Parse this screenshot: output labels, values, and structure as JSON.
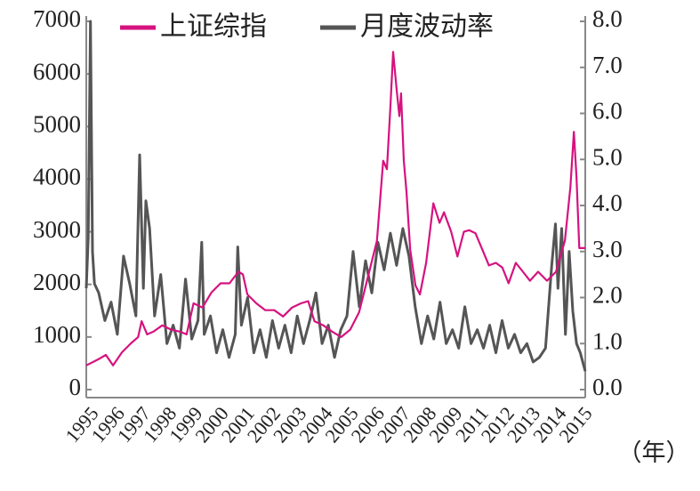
{
  "chart_data": {
    "type": "line",
    "x_label": "（年）",
    "xtick_labels": [
      "1995",
      "1996",
      "1997",
      "1998",
      "1999",
      "2000",
      "2001",
      "2002",
      "2003",
      "2004",
      "2005",
      "2006",
      "2007",
      "2008",
      "2009",
      "2011",
      "2012",
      "2013",
      "2014",
      "2015"
    ],
    "xlim": [
      1995,
      2015.1
    ],
    "ylim": [
      0,
      7000
    ],
    "yticks": [
      0,
      1000,
      2000,
      3000,
      4000,
      5000,
      6000,
      7000
    ],
    "y2lim": [
      0,
      8
    ],
    "y2ticks": [
      {
        "value": 0,
        "label": "0.0"
      },
      {
        "value": 1,
        "label": "1.0"
      },
      {
        "value": 2,
        "label": "2.0"
      },
      {
        "value": 3,
        "label": "3.0"
      },
      {
        "value": 4,
        "label": "4.0"
      },
      {
        "value": 5,
        "label": "5.0"
      },
      {
        "value": 6,
        "label": "6.0"
      },
      {
        "value": 7,
        "label": "7.0"
      },
      {
        "value": 8,
        "label": "8.0"
      }
    ],
    "series": [
      {
        "name": "上证综指",
        "color": "#d6127f",
        "x": [
          1995.0,
          1995.54,
          1995.79,
          1996.08,
          1996.44,
          1996.8,
          1997.09,
          1997.23,
          1997.45,
          1997.7,
          1998.06,
          1998.42,
          1998.78,
          1999.04,
          1999.32,
          1999.68,
          2000.05,
          2000.41,
          2000.77,
          2001.13,
          2001.31,
          2001.49,
          2001.85,
          2002.21,
          2002.57,
          2002.93,
          2003.29,
          2003.65,
          2003.94,
          2004.19,
          2004.55,
          2004.91,
          2005.27,
          2005.63,
          2005.99,
          2006.35,
          2006.71,
          2006.96,
          2007.11,
          2007.25,
          2007.36,
          2007.5,
          2007.61,
          2007.68,
          2007.79,
          2007.9,
          2008.05,
          2008.26,
          2008.44,
          2008.69,
          2008.98,
          2009.23,
          2009.41,
          2009.7,
          2009.95,
          2010.21,
          2010.42,
          2010.68,
          2010.93,
          2011.22,
          2011.5,
          2011.76,
          2012.01,
          2012.3,
          2012.59,
          2012.87,
          2013.2,
          2013.56,
          2013.92,
          2014.28,
          2014.5,
          2014.64,
          2014.75,
          2014.86,
          2015.1
        ],
        "values": [
          460,
          590,
          660,
          460,
          710,
          880,
          1000,
          1300,
          1050,
          1100,
          1220,
          1140,
          1100,
          1050,
          1640,
          1560,
          1850,
          2020,
          2020,
          2240,
          2190,
          1810,
          1640,
          1510,
          1510,
          1390,
          1560,
          1640,
          1680,
          1300,
          1220,
          1100,
          1000,
          1140,
          1470,
          2150,
          2830,
          4350,
          4190,
          5370,
          6420,
          5710,
          5200,
          5630,
          4350,
          3760,
          2660,
          1980,
          1810,
          2410,
          3540,
          3170,
          3370,
          3000,
          2530,
          3000,
          3030,
          2970,
          2690,
          2360,
          2410,
          2320,
          2020,
          2410,
          2240,
          2070,
          2240,
          2070,
          2240,
          2830,
          3850,
          4900,
          4020,
          2690,
          2690
        ]
      },
      {
        "name": "月度波动率",
        "color": "#555555",
        "axis": "y2",
        "x": [
          1995.0,
          1995.08,
          1995.17,
          1995.25,
          1995.33,
          1995.5,
          1995.75,
          1996.0,
          1996.25,
          1996.5,
          1996.75,
          1997.0,
          1997.15,
          1997.3,
          1997.4,
          1997.55,
          1997.75,
          1998.0,
          1998.25,
          1998.5,
          1998.75,
          1999.0,
          1999.25,
          1999.5,
          1999.65,
          1999.75,
          2000.0,
          2000.25,
          2000.5,
          2000.75,
          2001.0,
          2001.1,
          2001.25,
          2001.5,
          2001.75,
          2002.0,
          2002.25,
          2002.5,
          2002.75,
          2003.0,
          2003.25,
          2003.5,
          2003.75,
          2004.0,
          2004.25,
          2004.5,
          2004.75,
          2005.0,
          2005.25,
          2005.5,
          2005.75,
          2006.0,
          2006.25,
          2006.5,
          2006.75,
          2007.0,
          2007.25,
          2007.5,
          2007.75,
          2008.0,
          2008.25,
          2008.5,
          2008.75,
          2009.0,
          2009.25,
          2009.5,
          2009.75,
          2010.0,
          2010.25,
          2010.5,
          2010.75,
          2011.0,
          2011.25,
          2011.5,
          2011.75,
          2012.0,
          2012.25,
          2012.5,
          2012.75,
          2013.0,
          2013.25,
          2013.5,
          2013.75,
          2013.9,
          2014.0,
          2014.15,
          2014.3,
          2014.45,
          2014.6,
          2014.75,
          2014.9,
          2015.1
        ],
        "values": [
          2.2,
          3.3,
          8.0,
          3.0,
          2.3,
          2.1,
          1.5,
          1.9,
          1.2,
          2.9,
          2.3,
          1.6,
          5.1,
          2.2,
          4.1,
          3.5,
          1.6,
          2.5,
          1.0,
          1.4,
          0.9,
          2.4,
          1.1,
          1.5,
          3.2,
          1.2,
          1.6,
          0.8,
          1.3,
          0.7,
          1.2,
          3.1,
          1.4,
          2.0,
          0.8,
          1.3,
          0.7,
          1.5,
          0.9,
          1.4,
          0.8,
          1.6,
          1.0,
          1.5,
          2.1,
          1.0,
          1.4,
          0.7,
          1.3,
          1.6,
          3.0,
          1.8,
          2.8,
          2.1,
          3.2,
          2.6,
          3.4,
          2.7,
          3.5,
          2.9,
          1.8,
          1.0,
          1.6,
          1.1,
          1.9,
          1.0,
          1.3,
          0.9,
          1.8,
          1.0,
          1.3,
          0.9,
          1.4,
          0.8,
          1.5,
          0.9,
          1.2,
          0.8,
          1.0,
          0.6,
          0.7,
          0.9,
          2.7,
          3.6,
          2.2,
          3.5,
          1.2,
          3.0,
          1.7,
          1.0,
          0.8,
          0.4
        ]
      }
    ]
  }
}
